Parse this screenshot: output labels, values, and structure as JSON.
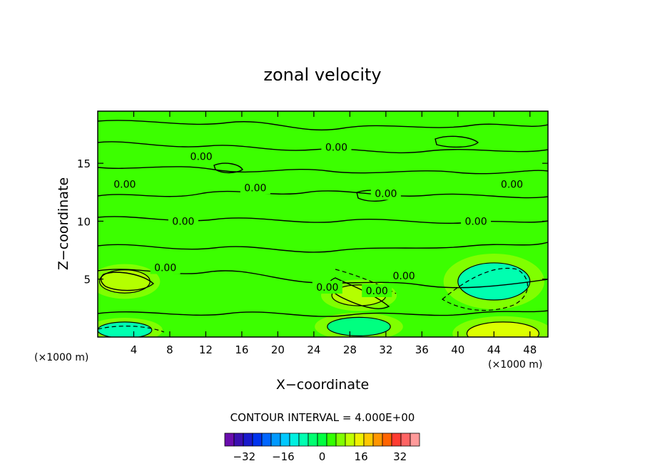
{
  "chart_data": {
    "type": "contour",
    "title": "zonal velocity",
    "xlabel": "X−coordinate",
    "ylabel": "Z−coordinate",
    "x_unit_label": "(×1000 m)",
    "y_unit_label": "(×1000 m)",
    "xlim": [
      0,
      50
    ],
    "ylim": [
      0,
      19.5
    ],
    "x_ticks": [
      4,
      8,
      12,
      16,
      20,
      24,
      28,
      32,
      36,
      40,
      44,
      48
    ],
    "y_ticks": [
      5,
      10,
      15
    ],
    "contour_interval_text": "CONTOUR INTERVAL = 4.000E+00",
    "contour_labels": [
      {
        "text": "0.00",
        "x": 26.5,
        "z": 16.4
      },
      {
        "text": "0.00",
        "x": 11.5,
        "z": 15.6
      },
      {
        "text": "0.00",
        "x": 3.0,
        "z": 13.2
      },
      {
        "text": "0.00",
        "x": 17.5,
        "z": 12.9
      },
      {
        "text": "0.00",
        "x": 32.0,
        "z": 12.4
      },
      {
        "text": "0.00",
        "x": 46.0,
        "z": 13.2
      },
      {
        "text": "0.00",
        "x": 9.5,
        "z": 10.0
      },
      {
        "text": "0.00",
        "x": 42.0,
        "z": 10.0
      },
      {
        "text": "0.00",
        "x": 7.5,
        "z": 6.0
      },
      {
        "text": "0.00",
        "x": 34.0,
        "z": 5.3
      },
      {
        "text": "0.00",
        "x": 25.5,
        "z": 4.3
      },
      {
        "text": "0.00",
        "x": 31.0,
        "z": 4.0
      }
    ],
    "colorbar": {
      "tick_labels": [
        "−32",
        "−16",
        "0",
        "16",
        "32"
      ],
      "tick_values": [
        -32,
        -16,
        0,
        16,
        32
      ],
      "min": -40,
      "max": 40,
      "interval": 4,
      "colors": [
        "#6a0dad",
        "#3b0fb0",
        "#1a1acc",
        "#0033ee",
        "#0066ff",
        "#0099ff",
        "#00c8ff",
        "#00f0e0",
        "#00ffb0",
        "#00ff70",
        "#00ff40",
        "#33ff00",
        "#80ff00",
        "#c0ff00",
        "#f0f000",
        "#ffc800",
        "#ff9600",
        "#ff6400",
        "#ff3c32",
        "#ff6464",
        "#ff9a9a"
      ]
    },
    "features": [
      {
        "type": "max",
        "x": 3.0,
        "z": 4.8,
        "rx": 2.8,
        "rz": 1.0,
        "color": "#b4ff00"
      },
      {
        "type": "max",
        "x": 29.0,
        "z": 3.6,
        "rx": 3.0,
        "rz": 0.9,
        "color": "#b4ff00"
      },
      {
        "type": "max",
        "x": 45.0,
        "z": 0.3,
        "rx": 4.0,
        "rz": 1.0,
        "color": "#dcff00"
      },
      {
        "type": "min",
        "x": 44.0,
        "z": 4.8,
        "rx": 4.0,
        "rz": 1.6,
        "color": "#00ffb0"
      },
      {
        "type": "min",
        "x": 3.0,
        "z": 0.6,
        "rx": 3.0,
        "rz": 0.7,
        "color": "#00ffb0"
      },
      {
        "type": "min",
        "x": 29.0,
        "z": 0.9,
        "rx": 3.5,
        "rz": 0.8,
        "color": "#00ff80"
      }
    ],
    "grid": false
  }
}
